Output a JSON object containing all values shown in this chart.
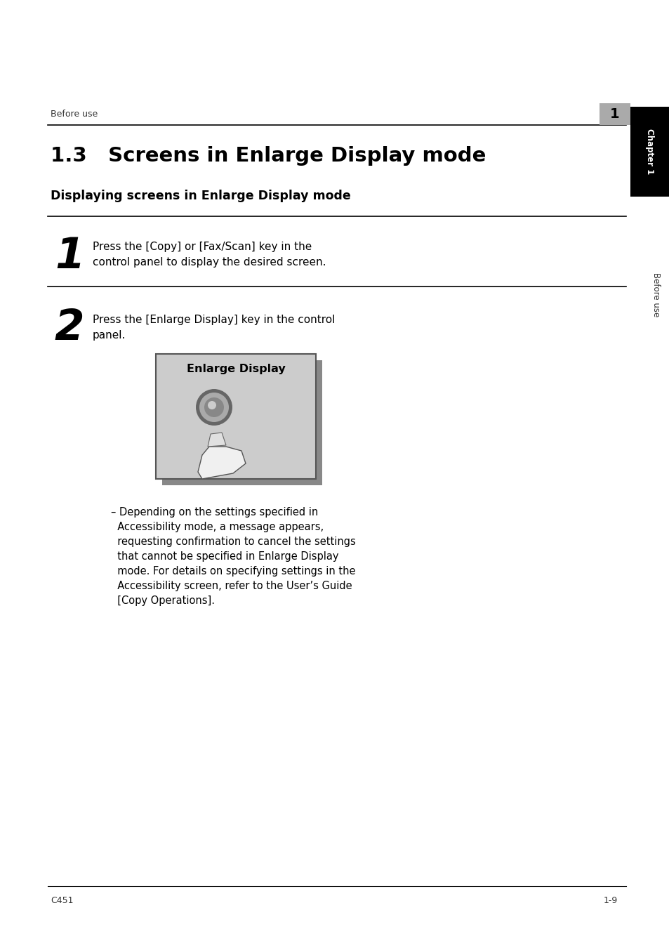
{
  "page_bg": "#ffffff",
  "header_text": "Before use",
  "header_number": "1",
  "title": "1.3   Screens in Enlarge Display mode",
  "subtitle": "Displaying screens in Enlarge Display mode",
  "step1_number": "1",
  "step1_text_line1": "Press the [Copy] or [Fax/Scan] key in the",
  "step1_text_line2": "control panel to display the desired screen.",
  "step2_number": "2",
  "step2_text_line1": "Press the [Enlarge Display] key in the control",
  "step2_text_line2": "panel.",
  "button_label": "Enlarge Display",
  "note_line1": "– Depending on the settings specified in",
  "note_line2": "  Accessibility mode, a message appears,",
  "note_line3": "  requesting confirmation to cancel the settings",
  "note_line4": "  that cannot be specified in Enlarge Display",
  "note_line5": "  mode. For details on specifying settings in the",
  "note_line6": "  Accessibility screen, refer to the User’s Guide",
  "note_line7": "  [Copy Operations].",
  "footer_left": "C451",
  "footer_right": "1-9",
  "sidebar_chapter": "Chapter 1",
  "sidebar_before": "Before use",
  "black_tab_color": "#000000",
  "gray_num_color": "#aaaaaa",
  "sidebar_text_color": "#ffffff"
}
